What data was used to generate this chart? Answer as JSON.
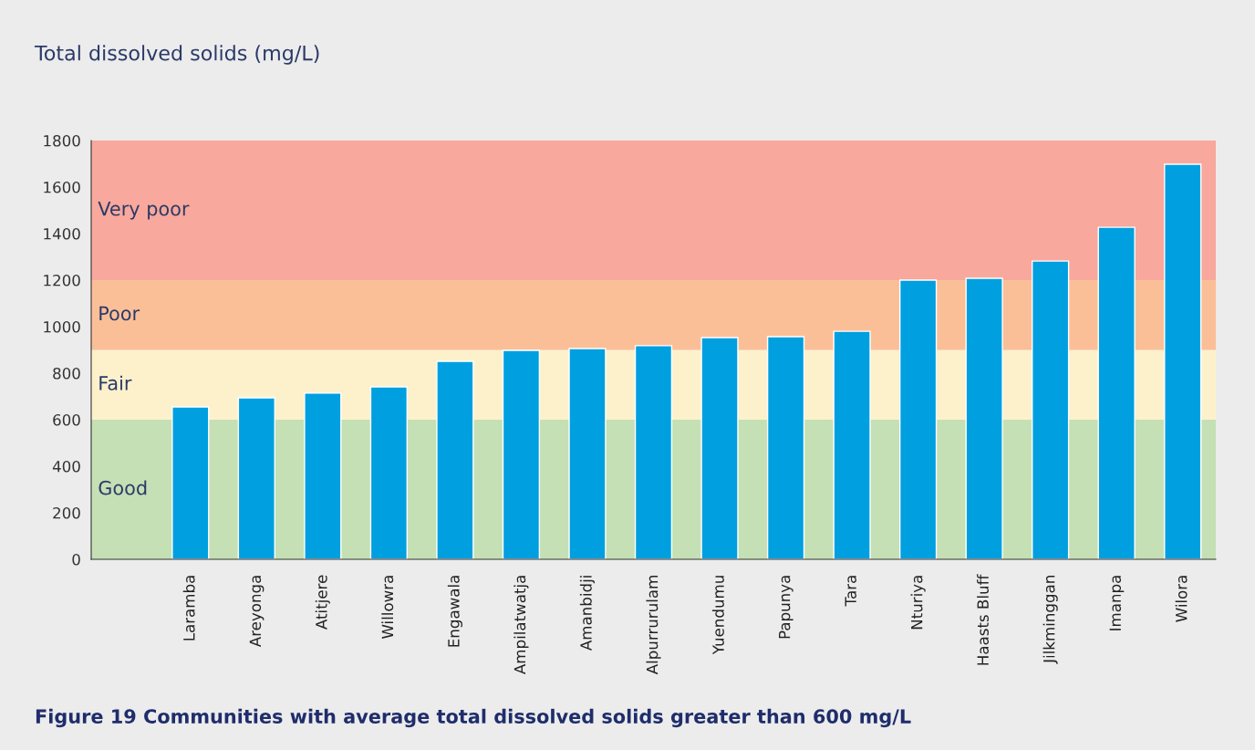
{
  "chart_data": {
    "type": "bar",
    "ylabel": "Total dissolved solids (mg/L)",
    "categories": [
      null,
      "Laramba",
      "Areyonga",
      "Atitjere",
      "Willowra",
      "Engawala",
      "Ampilatwatja",
      "Amanbidji",
      "Alpurrurulam",
      "Yuendumu",
      "Papunya",
      "Tara",
      "Nturiya",
      "Haasts Bluff",
      "Jilkminggan",
      "Imanpa",
      "Wilora"
    ],
    "values": [
      null,
      655,
      694,
      714,
      741,
      851,
      898,
      906,
      918,
      953,
      957,
      980,
      1200,
      1208,
      1282,
      1427,
      1698
    ],
    "color": "#009fe0",
    "ylim": [
      0,
      1800
    ],
    "yticks": [
      0,
      200,
      400,
      600,
      800,
      1000,
      1200,
      1400,
      1600,
      1800
    ],
    "bands": [
      {
        "axis": "y",
        "from": 0,
        "to": 600,
        "label": "Good",
        "color": "#c5e0b4"
      },
      {
        "axis": "y",
        "from": 600,
        "to": 900,
        "label": "Fair",
        "color": "#fdf1cc"
      },
      {
        "axis": "y",
        "from": 900,
        "to": 1200,
        "label": "Poor",
        "color": "#fbbf98"
      },
      {
        "axis": "y",
        "from": 1200,
        "to": 1800,
        "label": "Very poor",
        "color": "#f8a89c"
      }
    ],
    "grid": false,
    "legend": false,
    "annotations": [
      "Figure 19 Communities with average total dissolved solids greater than 600 mg/L"
    ]
  }
}
